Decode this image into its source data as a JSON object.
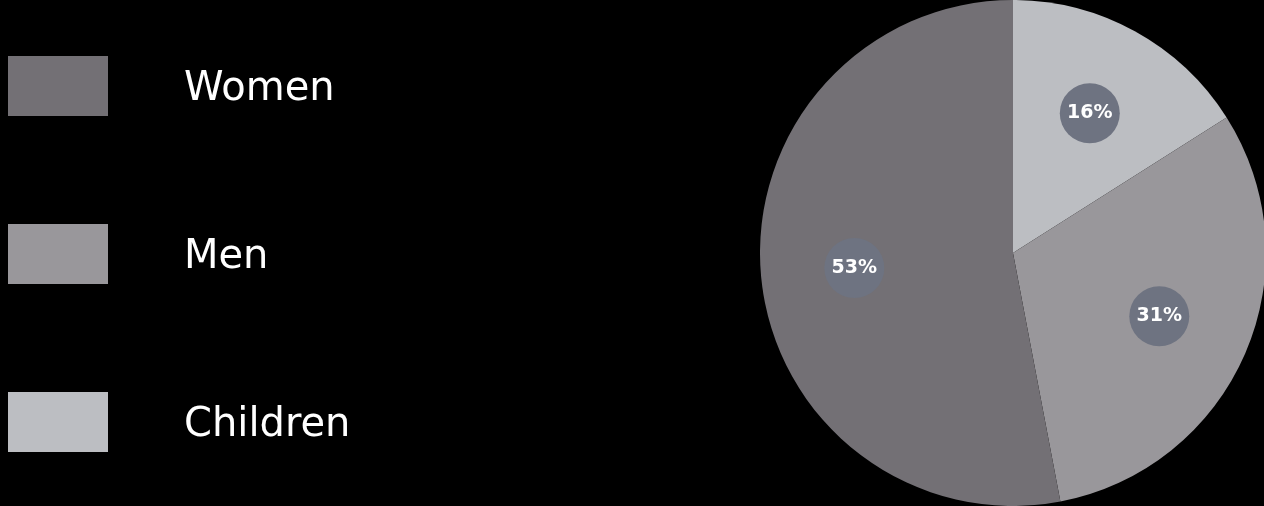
{
  "chart_data": {
    "type": "pie",
    "categories": [
      "Women",
      "Men",
      "Children"
    ],
    "values": [
      53,
      31,
      16
    ],
    "colors": [
      "#737075",
      "#99979b",
      "#bcbec2"
    ],
    "value_labels": [
      "53%",
      "31%",
      "16%"
    ],
    "legend": "left"
  }
}
